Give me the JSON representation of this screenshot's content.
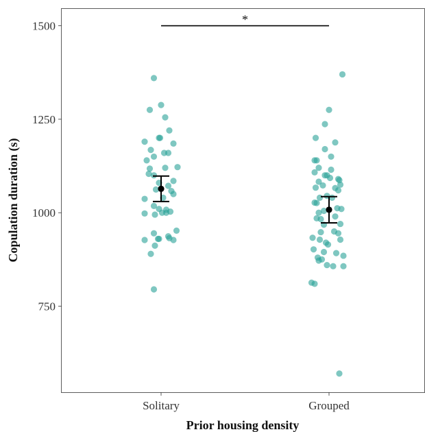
{
  "chart_data": {
    "type": "scatter",
    "subtype": "jittered strip plot with mean and error bars",
    "title": "",
    "xlabel": "Prior housing density",
    "ylabel": "Copulation duration (s)",
    "categories": [
      "Solitary",
      "Grouped"
    ],
    "ylim": [
      520,
      1545
    ],
    "yticks": [
      750,
      1000,
      1250,
      1500
    ],
    "grid": false,
    "point_color": "#2aa198",
    "point_opacity": 0.6,
    "summary_color": "#000000",
    "groups": [
      {
        "name": "Solitary",
        "mean": 1064,
        "error_low": 1030,
        "error_high": 1098,
        "points": [
          {
            "jitter": -0.07,
            "y": 1360
          },
          {
            "jitter": -0.11,
            "y": 1275
          },
          {
            "jitter": 0.0,
            "y": 1288
          },
          {
            "jitter": 0.04,
            "y": 1255
          },
          {
            "jitter": 0.08,
            "y": 1220
          },
          {
            "jitter": -0.16,
            "y": 1190
          },
          {
            "jitter": -0.02,
            "y": 1200
          },
          {
            "jitter": -0.01,
            "y": 1200
          },
          {
            "jitter": 0.12,
            "y": 1185
          },
          {
            "jitter": -0.1,
            "y": 1168
          },
          {
            "jitter": -0.07,
            "y": 1150
          },
          {
            "jitter": 0.03,
            "y": 1160
          },
          {
            "jitter": 0.07,
            "y": 1160
          },
          {
            "jitter": -0.14,
            "y": 1140
          },
          {
            "jitter": 0.16,
            "y": 1122
          },
          {
            "jitter": -0.11,
            "y": 1118
          },
          {
            "jitter": 0.04,
            "y": 1120
          },
          {
            "jitter": -0.12,
            "y": 1104
          },
          {
            "jitter": -0.07,
            "y": 1100
          },
          {
            "jitter": 0.12,
            "y": 1085
          },
          {
            "jitter": -0.02,
            "y": 1080
          },
          {
            "jitter": 0.07,
            "y": 1072
          },
          {
            "jitter": -0.05,
            "y": 1062
          },
          {
            "jitter": 0.1,
            "y": 1058
          },
          {
            "jitter": 0.12,
            "y": 1050
          },
          {
            "jitter": -0.16,
            "y": 1037
          },
          {
            "jitter": 0.02,
            "y": 1040
          },
          {
            "jitter": -0.07,
            "y": 1018
          },
          {
            "jitter": -0.02,
            "y": 1010
          },
          {
            "jitter": 0.05,
            "y": 1008
          },
          {
            "jitter": 0.09,
            "y": 1003
          },
          {
            "jitter": -0.16,
            "y": 998
          },
          {
            "jitter": -0.06,
            "y": 995
          },
          {
            "jitter": 0.01,
            "y": 1000
          },
          {
            "jitter": 0.05,
            "y": 1000
          },
          {
            "jitter": 0.15,
            "y": 952
          },
          {
            "jitter": -0.07,
            "y": 945
          },
          {
            "jitter": 0.07,
            "y": 937
          },
          {
            "jitter": 0.08,
            "y": 932
          },
          {
            "jitter": -0.02,
            "y": 930
          },
          {
            "jitter": -0.03,
            "y": 930
          },
          {
            "jitter": -0.16,
            "y": 927
          },
          {
            "jitter": 0.12,
            "y": 927
          },
          {
            "jitter": -0.06,
            "y": 912
          },
          {
            "jitter": -0.1,
            "y": 890
          },
          {
            "jitter": -0.07,
            "y": 795
          }
        ]
      },
      {
        "name": "Grouped",
        "mean": 1008,
        "error_low": 973,
        "error_high": 1043,
        "points": [
          {
            "jitter": 0.13,
            "y": 1370
          },
          {
            "jitter": 0.0,
            "y": 1275
          },
          {
            "jitter": -0.04,
            "y": 1237
          },
          {
            "jitter": -0.13,
            "y": 1200
          },
          {
            "jitter": 0.06,
            "y": 1188
          },
          {
            "jitter": -0.04,
            "y": 1170
          },
          {
            "jitter": 0.02,
            "y": 1150
          },
          {
            "jitter": -0.14,
            "y": 1140
          },
          {
            "jitter": -0.12,
            "y": 1140
          },
          {
            "jitter": -0.1,
            "y": 1120
          },
          {
            "jitter": 0.02,
            "y": 1115
          },
          {
            "jitter": -0.14,
            "y": 1108
          },
          {
            "jitter": -0.04,
            "y": 1100
          },
          {
            "jitter": -0.02,
            "y": 1100
          },
          {
            "jitter": 0.01,
            "y": 1093
          },
          {
            "jitter": 0.09,
            "y": 1090
          },
          {
            "jitter": 0.1,
            "y": 1087
          },
          {
            "jitter": -0.1,
            "y": 1083
          },
          {
            "jitter": 0.11,
            "y": 1075
          },
          {
            "jitter": -0.06,
            "y": 1073
          },
          {
            "jitter": -0.13,
            "y": 1067
          },
          {
            "jitter": 0.06,
            "y": 1066
          },
          {
            "jitter": 0.09,
            "y": 1060
          },
          {
            "jitter": -0.02,
            "y": 1045
          },
          {
            "jitter": -0.09,
            "y": 1040
          },
          {
            "jitter": 0.03,
            "y": 1040
          },
          {
            "jitter": -0.14,
            "y": 1027
          },
          {
            "jitter": -0.12,
            "y": 1026
          },
          {
            "jitter": 0.08,
            "y": 1012
          },
          {
            "jitter": 0.12,
            "y": 1010
          },
          {
            "jitter": -0.05,
            "y": 1005
          },
          {
            "jitter": -0.1,
            "y": 1000
          },
          {
            "jitter": 0.06,
            "y": 990
          },
          {
            "jitter": -0.12,
            "y": 985
          },
          {
            "jitter": -0.08,
            "y": 983
          },
          {
            "jitter": 0.11,
            "y": 970
          },
          {
            "jitter": -0.05,
            "y": 968
          },
          {
            "jitter": 0.05,
            "y": 950
          },
          {
            "jitter": -0.08,
            "y": 948
          },
          {
            "jitter": 0.09,
            "y": 945
          },
          {
            "jitter": -0.16,
            "y": 933
          },
          {
            "jitter": -0.09,
            "y": 928
          },
          {
            "jitter": 0.11,
            "y": 928
          },
          {
            "jitter": -0.03,
            "y": 920
          },
          {
            "jitter": -0.01,
            "y": 915
          },
          {
            "jitter": -0.15,
            "y": 902
          },
          {
            "jitter": -0.05,
            "y": 895
          },
          {
            "jitter": 0.07,
            "y": 892
          },
          {
            "jitter": -0.11,
            "y": 880
          },
          {
            "jitter": 0.14,
            "y": 885
          },
          {
            "jitter": -0.07,
            "y": 875
          },
          {
            "jitter": -0.1,
            "y": 872
          },
          {
            "jitter": -0.02,
            "y": 860
          },
          {
            "jitter": 0.04,
            "y": 857
          },
          {
            "jitter": 0.14,
            "y": 857
          },
          {
            "jitter": -0.17,
            "y": 813
          },
          {
            "jitter": -0.14,
            "y": 810
          },
          {
            "jitter": 0.1,
            "y": 570
          }
        ]
      }
    ],
    "annotations": [
      {
        "type": "significance",
        "from": "Solitary",
        "to": "Grouped",
        "y": 1500,
        "label": "*"
      }
    ]
  }
}
